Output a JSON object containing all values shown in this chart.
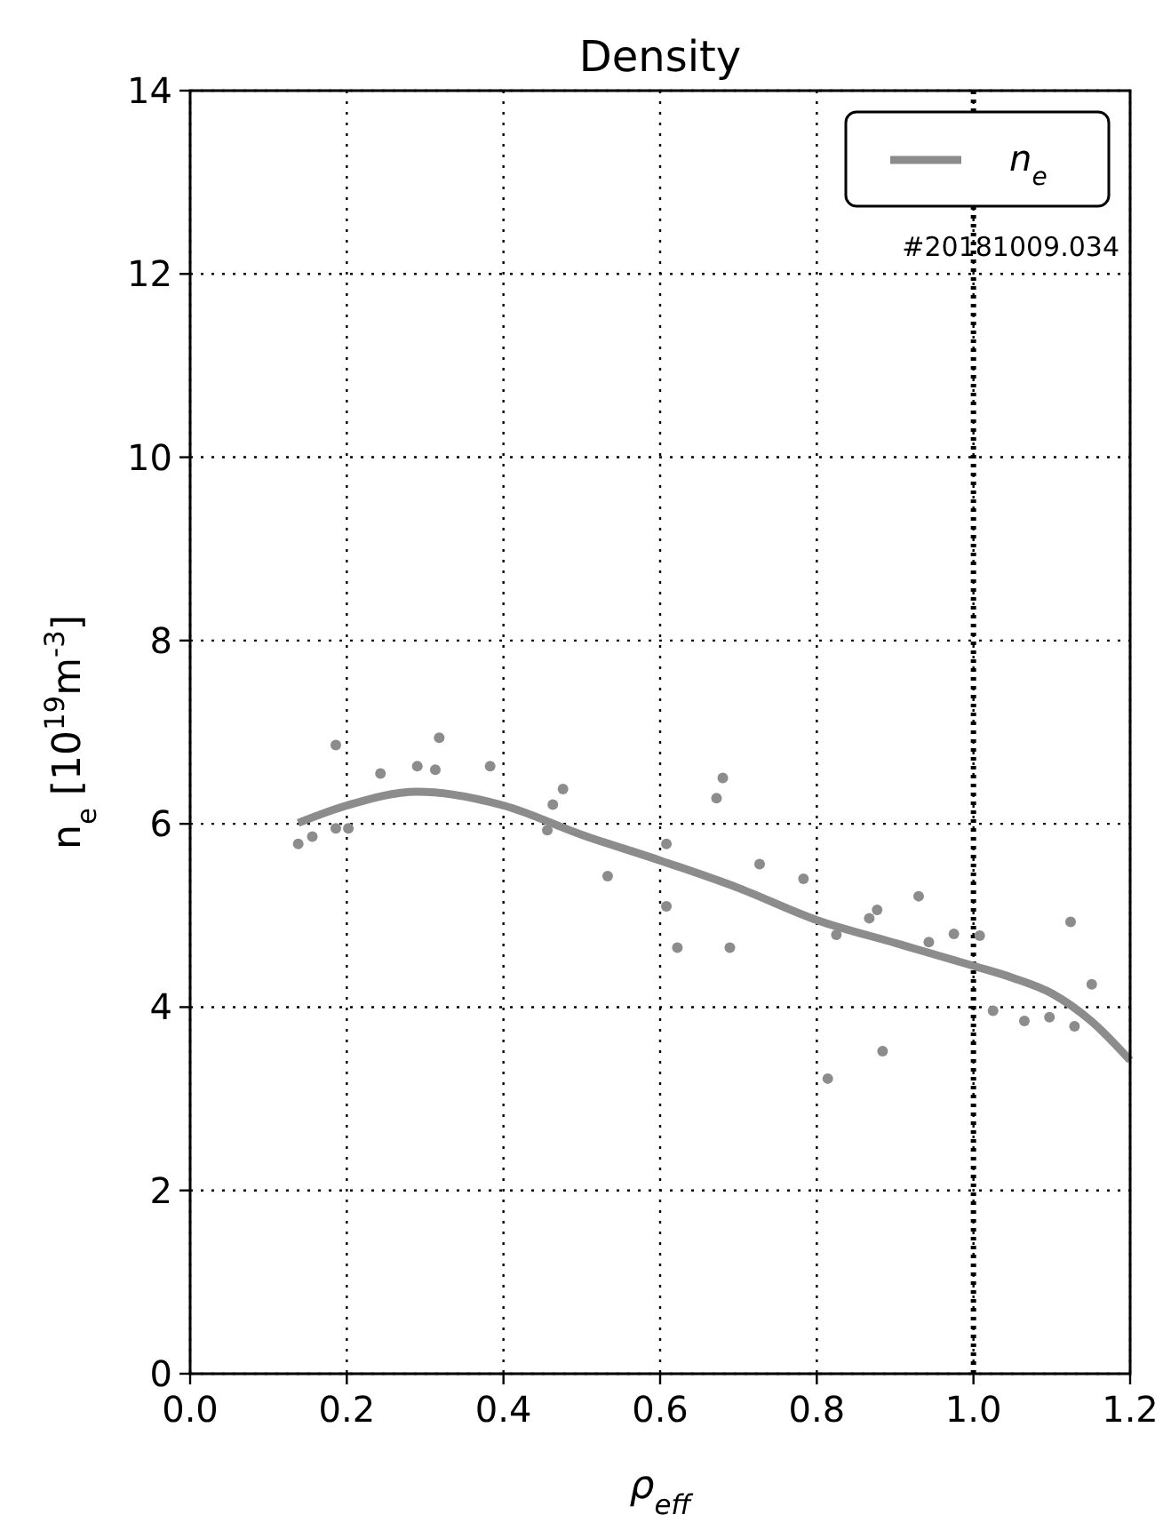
{
  "chart_data": {
    "type": "scatter",
    "title": "Density",
    "xlabel": "ρ$_{eff}$",
    "ylabel": "n$_{e}$ [10$^{19}$m$^{-3}$]",
    "xlim": [
      0,
      1.2
    ],
    "ylim": [
      0,
      14
    ],
    "xticks": [
      {
        "value": 0,
        "label": "0.0"
      },
      0.2,
      0.4,
      0.6,
      0.8,
      {
        "value": 1,
        "label": "1.0"
      },
      1.2
    ],
    "yticks": [
      0,
      2,
      4,
      6,
      8,
      10,
      12,
      14
    ],
    "grid": true,
    "legend": "top right",
    "marker": "circle",
    "annotations": [
      "#20181009.034"
    ],
    "ref_lines": [
      {
        "axis": "x",
        "value": 1,
        "color": "#000000",
        "line_style": "dotted"
      }
    ],
    "series": [
      {
        "color": "#8c8c8c",
        "x": [
          0.138,
          0.156,
          0.186,
          0.186,
          0.202,
          0.243,
          0.29,
          0.313,
          0.318,
          0.383,
          0.456,
          0.463,
          0.476,
          0.533,
          0.608,
          0.608,
          0.622,
          0.672,
          0.68,
          0.689,
          0.727,
          0.783,
          0.814,
          0.825,
          0.867,
          0.877,
          0.884,
          0.93,
          0.943,
          0.975,
          1.008,
          1.025,
          1.065,
          1.097,
          1.124,
          1.129,
          1.151
        ],
        "values": [
          5.78,
          5.86,
          6.86,
          5.95,
          5.95,
          6.55,
          6.63,
          6.59,
          6.94,
          6.63,
          5.93,
          6.21,
          6.38,
          5.43,
          5.78,
          5.1,
          4.65,
          6.28,
          6.5,
          4.65,
          5.56,
          5.4,
          3.22,
          4.79,
          4.97,
          5.06,
          3.52,
          5.21,
          4.71,
          4.8,
          4.78,
          3.96,
          3.85,
          3.89,
          4.93,
          3.79,
          4.25
        ]
      },
      {
        "type": "line",
        "name": "n$_{e}$",
        "color": "#8c8c8c",
        "marker": "none",
        "line_style": "solid",
        "x": [
          0.138,
          0.2,
          0.29,
          0.4,
          0.5,
          0.6,
          0.7,
          0.8,
          0.9,
          1.0,
          1.05,
          1.1,
          1.15,
          1.2
        ],
        "values": [
          6.01,
          6.2,
          6.35,
          6.2,
          5.88,
          5.6,
          5.3,
          4.95,
          4.7,
          4.45,
          4.32,
          4.15,
          3.85,
          3.42
        ]
      }
    ]
  }
}
